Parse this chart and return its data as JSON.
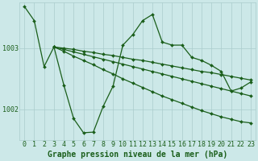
{
  "background_color": "#cce8e8",
  "line_color": "#1a5e1a",
  "grid_color": "#aacccc",
  "xlabel": "Graphe pression niveau de la mer (hPa)",
  "xlabel_fontsize": 7,
  "tick_fontsize": 6,
  "ytick_labels": [
    "1002",
    "1003"
  ],
  "ytick_values": [
    1002.0,
    1003.0
  ],
  "ylim": [
    1001.5,
    1003.75
  ],
  "xlim": [
    -0.5,
    23.5
  ],
  "xtick_values": [
    0,
    1,
    2,
    3,
    4,
    5,
    6,
    7,
    8,
    9,
    10,
    11,
    12,
    13,
    14,
    15,
    16,
    17,
    18,
    19,
    20,
    21,
    22,
    23
  ],
  "series": [
    {
      "x": [
        0,
        1,
        2,
        3,
        4,
        5,
        6,
        7,
        8,
        9,
        10,
        11,
        12,
        13,
        14,
        15,
        16,
        17,
        18,
        19,
        20,
        21,
        22,
        23
      ],
      "y": [
        1003.68,
        1003.45,
        1002.7,
        1003.02,
        1002.4,
        1001.85,
        1001.62,
        1001.63,
        1002.05,
        1002.38,
        1003.05,
        1003.22,
        1003.45,
        1003.55,
        1003.1,
        1003.05,
        1003.05,
        1002.85,
        1002.8,
        1002.72,
        1002.62,
        1002.3,
        1002.35,
        1002.45
      ],
      "marker": "D",
      "markersize": 2.0,
      "linewidth": 0.9
    },
    {
      "x": [
        3,
        4,
        5,
        6,
        7,
        8,
        9,
        10,
        11,
        12,
        13,
        14,
        15,
        16,
        17,
        18,
        19,
        20,
        21,
        22,
        23
      ],
      "y": [
        1003.02,
        1003.0,
        1002.98,
        1002.95,
        1002.93,
        1002.9,
        1002.88,
        1002.85,
        1002.82,
        1002.8,
        1002.77,
        1002.74,
        1002.71,
        1002.68,
        1002.65,
        1002.62,
        1002.6,
        1002.57,
        1002.54,
        1002.51,
        1002.48
      ],
      "marker": "D",
      "markersize": 2.0,
      "linewidth": 0.9
    },
    {
      "x": [
        3,
        4,
        5,
        6,
        7,
        8,
        9,
        10,
        11,
        12,
        13,
        14,
        15,
        16,
        17,
        18,
        19,
        20,
        21,
        22,
        23
      ],
      "y": [
        1003.02,
        1002.98,
        1002.94,
        1002.9,
        1002.86,
        1002.82,
        1002.78,
        1002.74,
        1002.7,
        1002.66,
        1002.62,
        1002.58,
        1002.54,
        1002.5,
        1002.46,
        1002.42,
        1002.38,
        1002.34,
        1002.3,
        1002.26,
        1002.22
      ],
      "marker": "D",
      "markersize": 2.0,
      "linewidth": 0.9
    },
    {
      "x": [
        3,
        4,
        5,
        6,
        7,
        8,
        9,
        10,
        11,
        12,
        13,
        14,
        15,
        16,
        17,
        18,
        19,
        20,
        21,
        22,
        23
      ],
      "y": [
        1003.02,
        1002.95,
        1002.87,
        1002.8,
        1002.73,
        1002.65,
        1002.58,
        1002.5,
        1002.43,
        1002.36,
        1002.29,
        1002.22,
        1002.16,
        1002.1,
        1002.04,
        1001.98,
        1001.93,
        1001.88,
        1001.84,
        1001.8,
        1001.78
      ],
      "marker": "D",
      "markersize": 2.0,
      "linewidth": 0.9
    }
  ]
}
